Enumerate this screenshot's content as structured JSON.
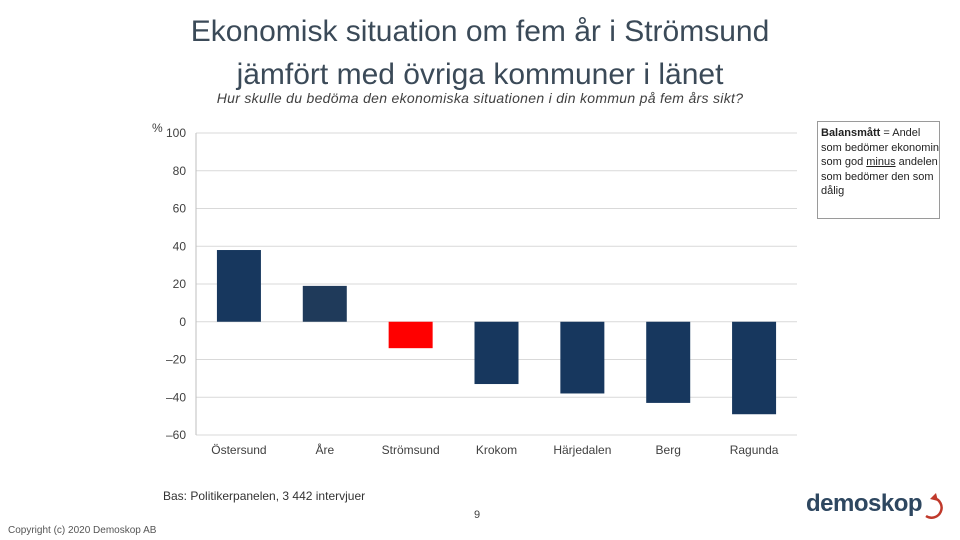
{
  "slide": {
    "title_line1": "Ekonomisk situation om fem år i Strömsund",
    "title_line2": "jämfört med övriga kommuner i länet",
    "subtitle": "Hur skulle du bedöma den ekonomiska situationen i din kommun på fem års sikt?",
    "percent_unit": "%",
    "basis": "Bas: Politikerpanelen, 3 442 intervjuer",
    "page_number": "9",
    "copyright": "Copyright (c) 2020 Demoskop AB",
    "logo_text": "demoskop"
  },
  "infobox": {
    "bold_term": "Balansmått",
    "text_1": " = Andel som bedömer ekonomin som god ",
    "underlined": "minus",
    "text_2": " andelen som bedömer den som dålig"
  },
  "chart_data": {
    "type": "bar",
    "title": "Ekonomisk situation om fem år i Strömsund jämfört med övriga kommuner i länet",
    "xlabel": "",
    "ylabel": "%",
    "ylim": [
      -60,
      100
    ],
    "yticks": [
      100,
      80,
      60,
      40,
      20,
      0,
      -20,
      -40,
      -60
    ],
    "grid": true,
    "categories": [
      "Östersund",
      "Åre",
      "Strömsund",
      "Krokom",
      "Härjedalen",
      "Berg",
      "Ragunda"
    ],
    "values": [
      38,
      19,
      -14,
      -33,
      -38,
      -43,
      -49
    ],
    "colors": [
      "#17375e",
      "#1f3a5a",
      "#ff0000",
      "#17375e",
      "#17375e",
      "#17375e",
      "#17375e"
    ]
  },
  "colors": {
    "bar": "#17375e",
    "highlight": "#ff0000",
    "grid": "#d9d9d9",
    "logo_arrow": "#c0392b"
  }
}
